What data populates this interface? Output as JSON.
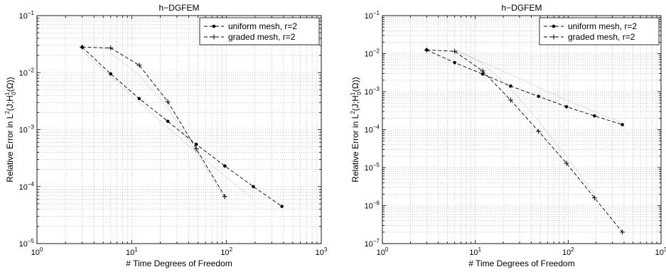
{
  "chart_data": [
    {
      "type": "line",
      "title": "h−DGFEM",
      "xlabel": "# Time Degrees of Freedom",
      "ylabel_parts": [
        "Relative Error in L",
        "2",
        "(J;H",
        "1",
        "0",
        "(Ω))"
      ],
      "xscale": "log",
      "yscale": "log",
      "xlim": [
        1,
        1000
      ],
      "ylim": [
        1e-05,
        0.1
      ],
      "grid": true,
      "legend_position": "top-right",
      "xticks": [
        {
          "value": 1,
          "base": "10",
          "exp": "0"
        },
        {
          "value": 10,
          "base": "10",
          "exp": "1"
        },
        {
          "value": 100,
          "base": "10",
          "exp": "2"
        },
        {
          "value": 1000,
          "base": "10",
          "exp": "3"
        }
      ],
      "yticks": [
        {
          "value": 1e-05,
          "base": "10",
          "exp": "−5"
        },
        {
          "value": 0.0001,
          "base": "10",
          "exp": "−4"
        },
        {
          "value": 0.001,
          "base": "10",
          "exp": "−3"
        },
        {
          "value": 0.01,
          "base": "10",
          "exp": "−2"
        },
        {
          "value": 0.1,
          "base": "10",
          "exp": "−1"
        }
      ],
      "series": [
        {
          "name": "uniform mesh, r=2",
          "marker": "dot",
          "x": [
            3,
            6,
            12,
            24,
            48,
            96,
            192,
            384
          ],
          "y": [
            0.028,
            0.0095,
            0.0035,
            0.0014,
            0.00055,
            0.00023,
            0.0001,
            4.5e-05
          ]
        },
        {
          "name": "graded mesh, r=2",
          "marker": "plus",
          "x": [
            3,
            6,
            12,
            24,
            48,
            96
          ],
          "y": [
            0.028,
            0.027,
            0.0135,
            0.0031,
            0.00046,
            6.7e-05
          ]
        }
      ],
      "reference_lines": [
        {
          "x": [
            3,
            12,
            48,
            192
          ],
          "y": [
            0.024,
            0.003,
            0.0004,
            6e-05
          ]
        },
        {
          "x": [
            6,
            12,
            24,
            48,
            96
          ],
          "y": [
            0.022,
            0.009,
            0.0024,
            0.0004,
            6e-05
          ]
        }
      ]
    },
    {
      "type": "line",
      "title": "h−DGFEM",
      "xlabel": "# Time Degrees of Freedom",
      "ylabel_parts": [
        "Relative Error in L",
        "2",
        "(J;H",
        "1",
        "0",
        "(Ω))"
      ],
      "xscale": "log",
      "yscale": "log",
      "xlim": [
        1,
        1000
      ],
      "ylim": [
        1e-07,
        0.1
      ],
      "grid": true,
      "legend_position": "top-right",
      "xticks": [
        {
          "value": 1,
          "base": "10",
          "exp": "0"
        },
        {
          "value": 10,
          "base": "10",
          "exp": "1"
        },
        {
          "value": 100,
          "base": "10",
          "exp": "2"
        },
        {
          "value": 1000,
          "base": "10",
          "exp": "3"
        }
      ],
      "yticks": [
        {
          "value": 1e-07,
          "base": "10",
          "exp": "−7"
        },
        {
          "value": 1e-06,
          "base": "10",
          "exp": "−6"
        },
        {
          "value": 1e-05,
          "base": "10",
          "exp": "−5"
        },
        {
          "value": 0.0001,
          "base": "10",
          "exp": "−4"
        },
        {
          "value": 0.001,
          "base": "10",
          "exp": "−3"
        },
        {
          "value": 0.01,
          "base": "10",
          "exp": "−2"
        },
        {
          "value": 0.1,
          "base": "10",
          "exp": "−1"
        }
      ],
      "series": [
        {
          "name": "uniform mesh, r=2",
          "marker": "dot",
          "x": [
            3,
            6,
            12,
            24,
            48,
            96,
            192,
            384
          ],
          "y": [
            0.0125,
            0.0058,
            0.0029,
            0.0014,
            0.00075,
            0.0004,
            0.00023,
            0.000135
          ]
        },
        {
          "name": "graded mesh, r=2",
          "marker": "plus",
          "x": [
            3,
            6,
            12,
            24,
            48,
            96,
            192,
            384
          ],
          "y": [
            0.0125,
            0.0115,
            0.0035,
            0.0006,
            9e-05,
            1.3e-05,
            1.6e-06,
            2e-07
          ]
        }
      ],
      "reference_lines": [
        {
          "x": [
            6,
            12,
            24,
            48,
            96,
            192
          ],
          "y": [
            0.013,
            0.0055,
            0.0012,
            0.00017,
            2e-05,
            2e-06
          ]
        },
        {
          "x": [
            6,
            24,
            96,
            384
          ],
          "y": [
            0.0125,
            0.0028,
            0.0006,
            0.00015
          ]
        }
      ]
    }
  ]
}
